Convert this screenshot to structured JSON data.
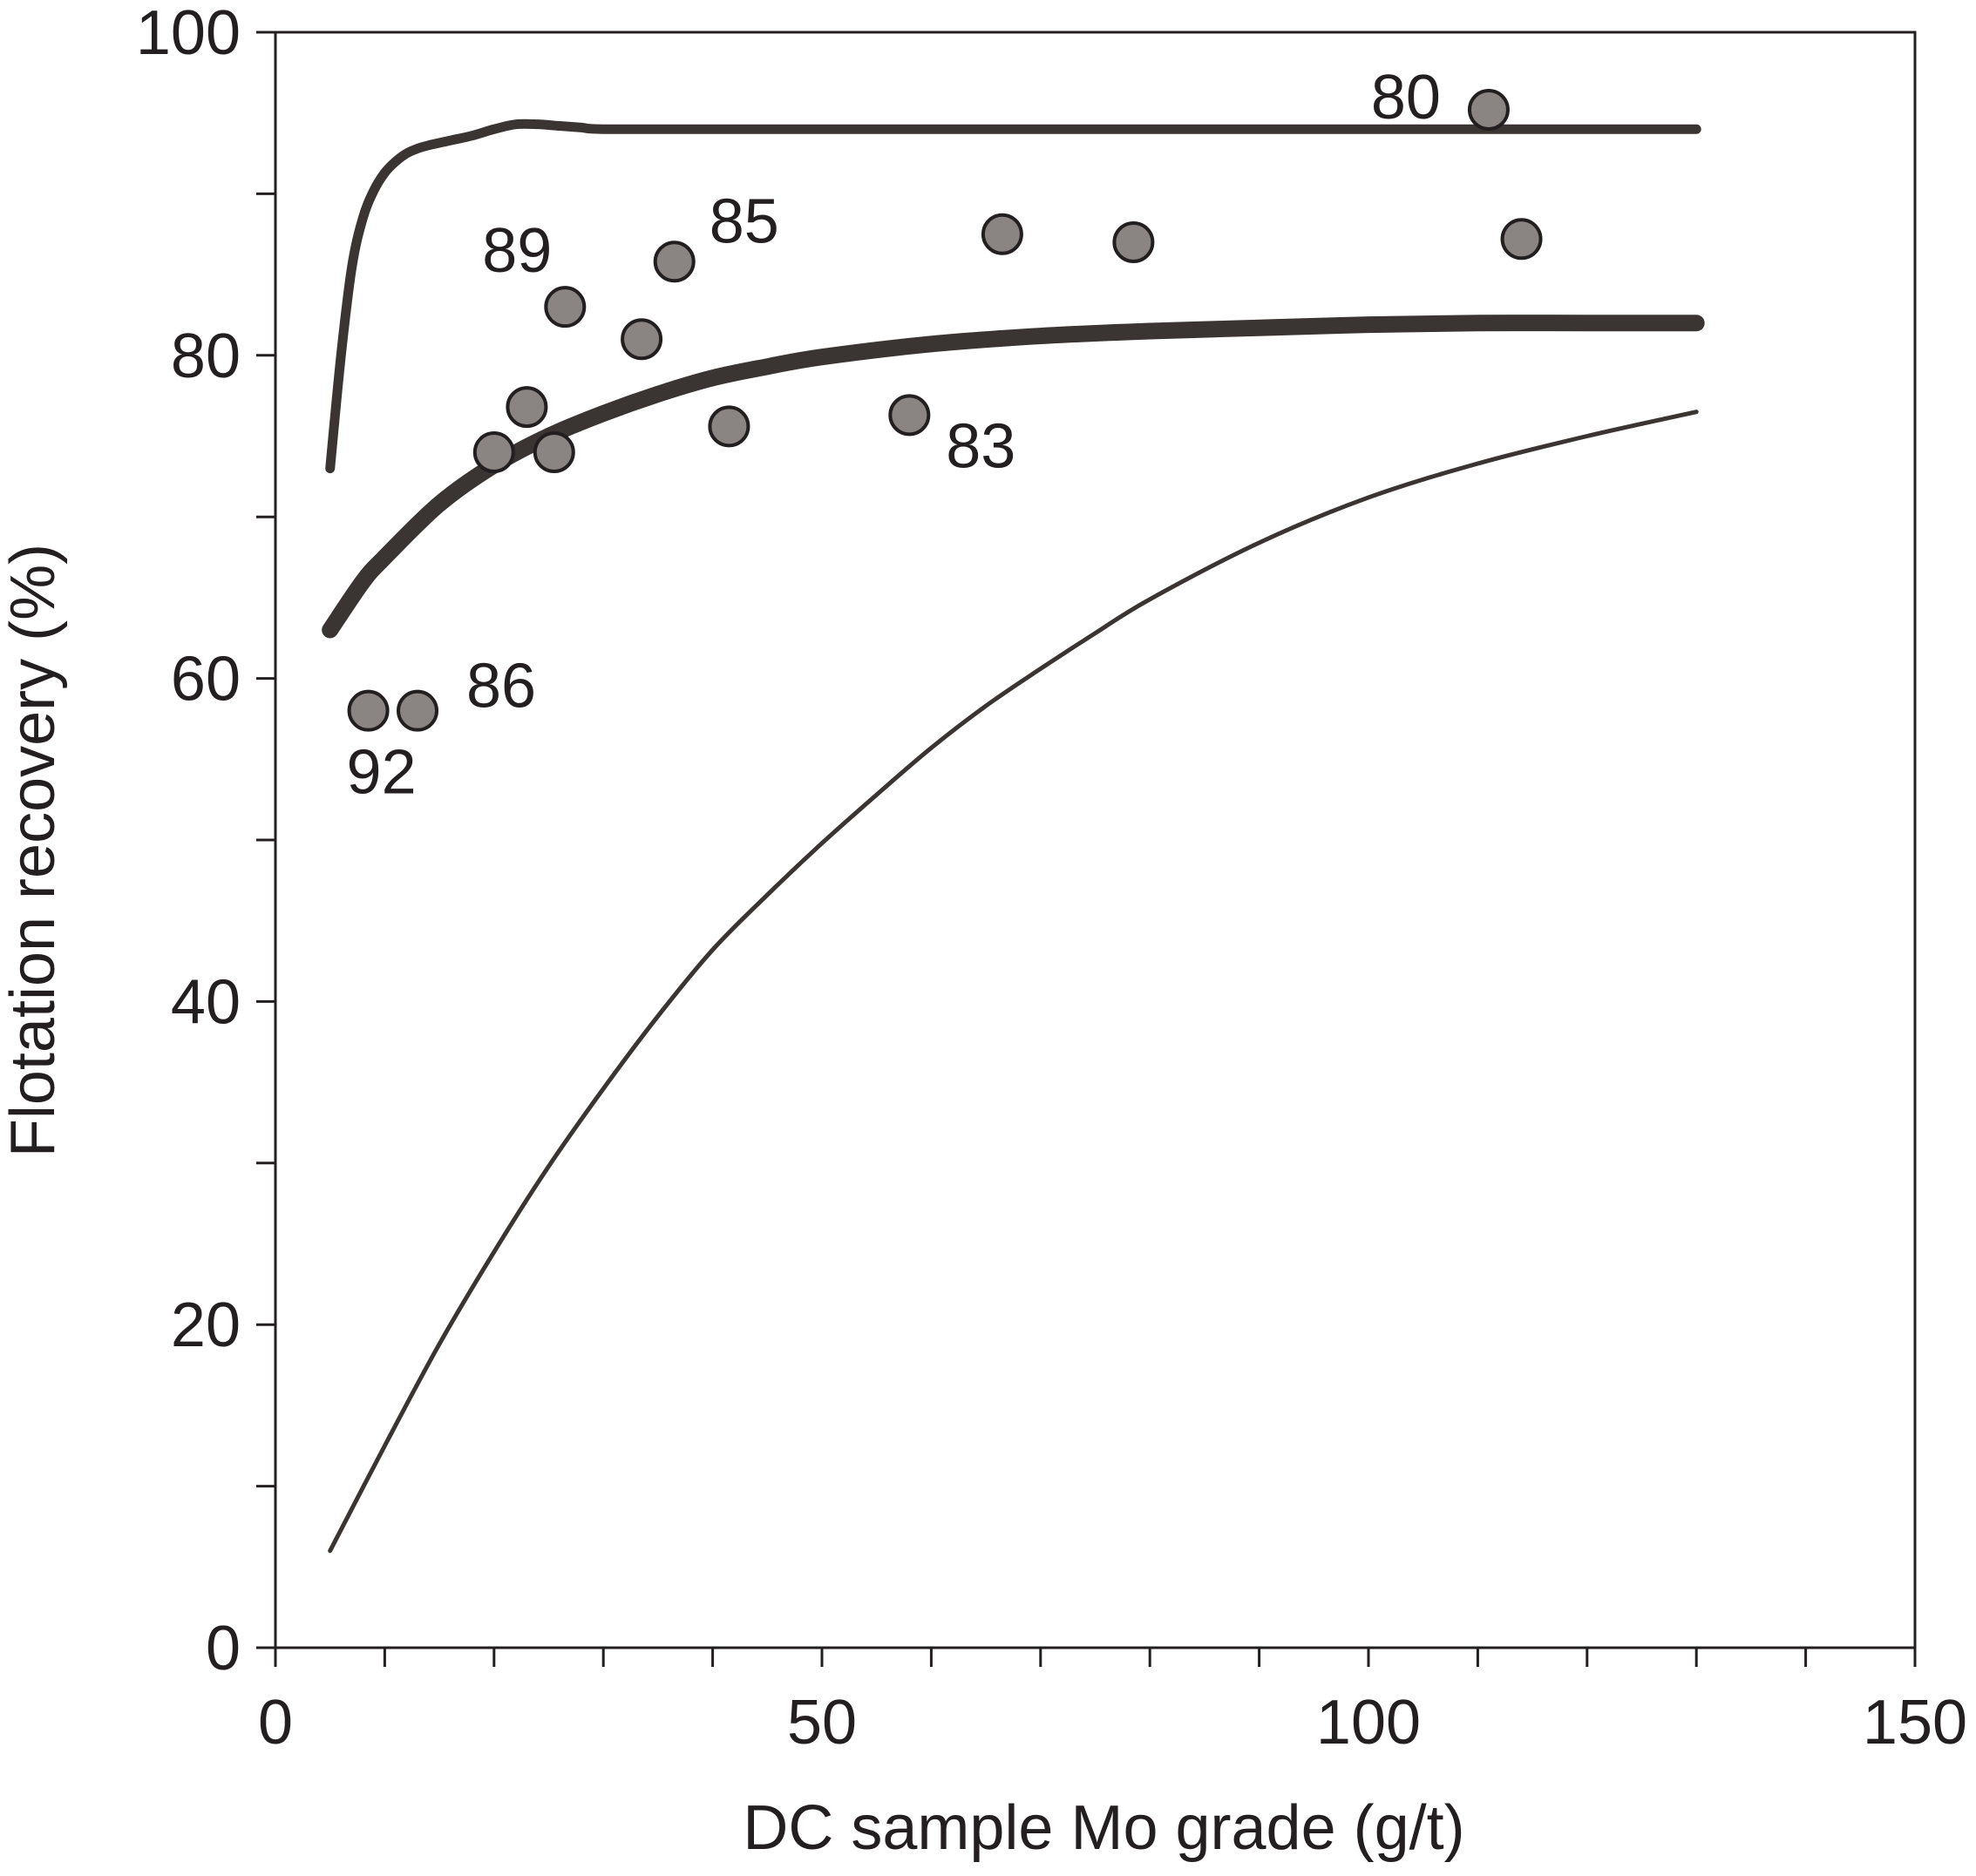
{
  "chart_data": {
    "type": "scatter",
    "title": "",
    "xlabel": "DC sample Mo grade (g/t)",
    "ylabel": "Flotation recovery (%)",
    "xlim": [
      0,
      150
    ],
    "ylim": [
      0,
      100
    ],
    "x_ticks": [
      0,
      50,
      100,
      150
    ],
    "x_tick_labels": [
      "0",
      "50",
      "100",
      "150"
    ],
    "x_minor_step": 10,
    "y_ticks": [
      0,
      20,
      40,
      60,
      80,
      100
    ],
    "y_tick_labels": [
      "0",
      "20",
      "40",
      "60",
      "80",
      "100"
    ],
    "y_minor_step": 10,
    "grid": false,
    "colors": {
      "axis": "#231f20",
      "curve": "#3a3532",
      "point_fill": "#8a8583",
      "point_stroke": "#231f20"
    },
    "points": [
      {
        "x": 8.5,
        "y": 58.0,
        "label": "92"
      },
      {
        "x": 13.0,
        "y": 58.0,
        "label": "86"
      },
      {
        "x": 20.0,
        "y": 74.0,
        "label": ""
      },
      {
        "x": 23.0,
        "y": 76.8,
        "label": ""
      },
      {
        "x": 25.5,
        "y": 74.0,
        "label": ""
      },
      {
        "x": 26.5,
        "y": 83.0,
        "label": "89"
      },
      {
        "x": 33.5,
        "y": 81.0,
        "label": ""
      },
      {
        "x": 36.5,
        "y": 85.8,
        "label": "85"
      },
      {
        "x": 41.5,
        "y": 75.6,
        "label": ""
      },
      {
        "x": 58.0,
        "y": 76.3,
        "label": "83"
      },
      {
        "x": 66.5,
        "y": 87.5,
        "label": ""
      },
      {
        "x": 78.5,
        "y": 87.0,
        "label": ""
      },
      {
        "x": 111.0,
        "y": 95.2,
        "label": "80"
      },
      {
        "x": 114.0,
        "y": 87.2,
        "label": ""
      }
    ],
    "curves": [
      {
        "name": "upper-envelope",
        "weight": "medium",
        "x": [
          5,
          6,
          7,
          8,
          9,
          10,
          11,
          12,
          13,
          14,
          16,
          18,
          20,
          22,
          24,
          26,
          28,
          30,
          40,
          60,
          80,
          100,
          130
        ],
        "y": [
          73,
          80,
          85.5,
          88.5,
          90.2,
          91.3,
          92.0,
          92.5,
          92.8,
          93.0,
          93.3,
          93.6,
          94.0,
          94.3,
          94.3,
          94.2,
          94.1,
          94.0,
          94.0,
          94.0,
          94.0,
          94.0,
          94.0
        ]
      },
      {
        "name": "mean-curve",
        "weight": "heavy",
        "x": [
          5,
          8,
          10,
          15,
          20,
          25,
          30,
          35,
          40,
          45,
          50,
          60,
          70,
          80,
          90,
          100,
          110,
          120,
          130
        ],
        "y": [
          63,
          66.0,
          67.5,
          70.8,
          73.2,
          75.0,
          76.4,
          77.6,
          78.6,
          79.3,
          79.9,
          80.7,
          81.2,
          81.5,
          81.7,
          81.9,
          82.0,
          82.0,
          82.0
        ]
      },
      {
        "name": "lower-envelope",
        "weight": "thin",
        "x": [
          5,
          10,
          15,
          20,
          25,
          30,
          35,
          40,
          45,
          50,
          55,
          60,
          65,
          70,
          75,
          80,
          90,
          100,
          110,
          120,
          130
        ],
        "y": [
          6,
          12.5,
          18.8,
          24.5,
          29.8,
          34.6,
          39.1,
          43.2,
          46.6,
          49.8,
          52.8,
          55.7,
          58.3,
          60.6,
          62.8,
          64.9,
          68.4,
          71.2,
          73.3,
          75.0,
          76.5
        ]
      }
    ]
  }
}
